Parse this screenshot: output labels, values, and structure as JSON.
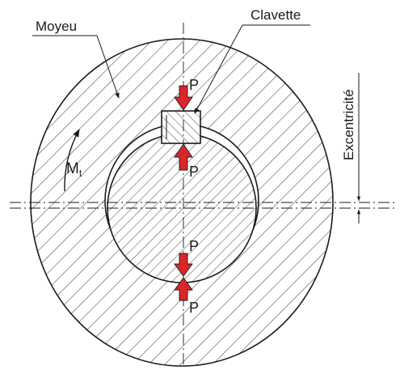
{
  "labels": {
    "hub": "Moyeu",
    "key": "Clavette",
    "eccentricity": "Excentricité",
    "torque_main": "M",
    "torque_sub": "t",
    "force_key_top": "P",
    "force_key_bottom": "P",
    "force_low_top": "P",
    "force_low_bottom": "P"
  },
  "colors": {
    "line": "#1a1a1a",
    "force_arrow": "#d9262b",
    "background": "#ffffff"
  }
}
